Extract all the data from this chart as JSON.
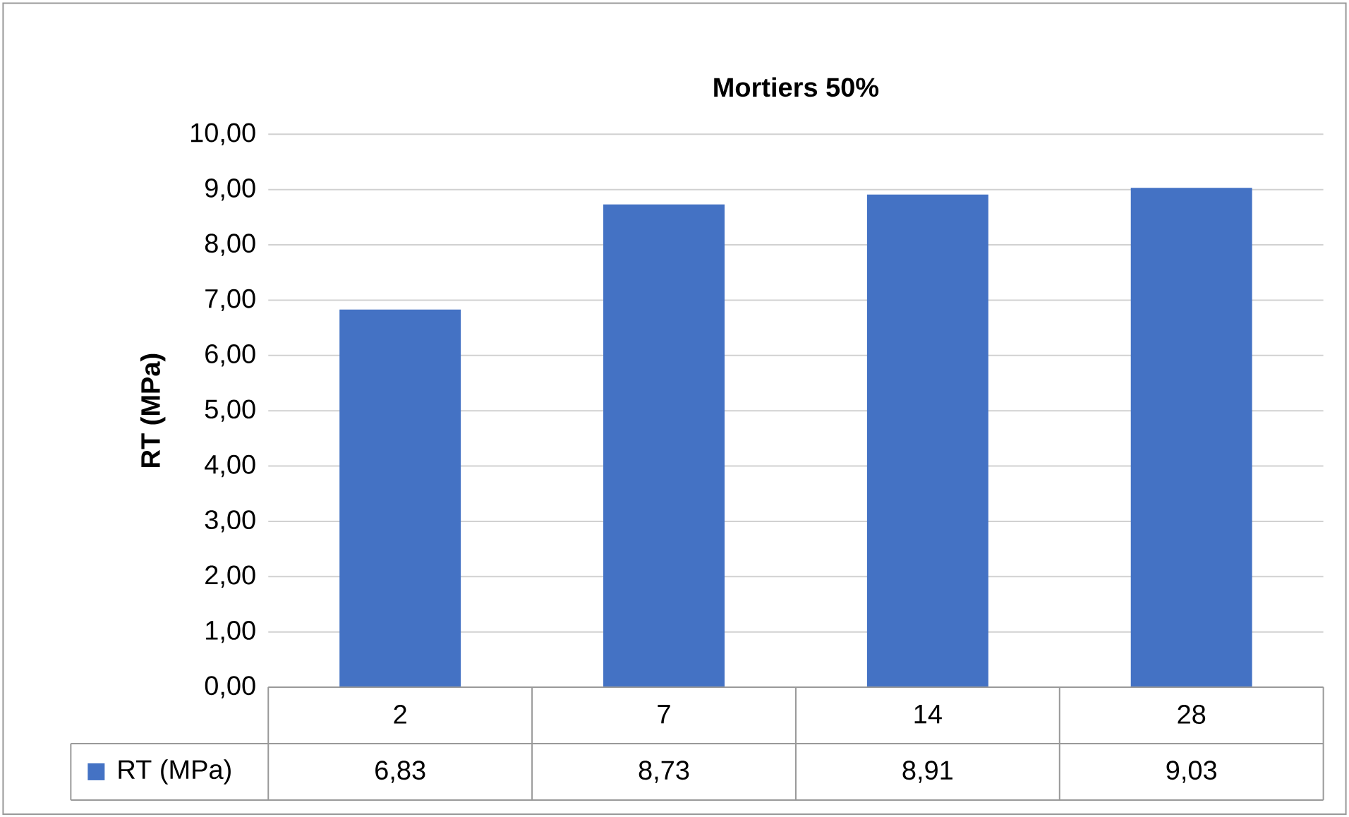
{
  "chart_data": {
    "type": "bar",
    "title": "Mortiers 50%",
    "ylabel": "RT (MPa)",
    "categories": [
      "2",
      "7",
      "14",
      "28"
    ],
    "series": [
      {
        "name": "RT (MPa)",
        "color": "#4472c4",
        "values": [
          6.83,
          8.73,
          8.91,
          9.03
        ],
        "value_labels": [
          "6,83",
          "8,73",
          "8,91",
          "9,03"
        ]
      }
    ],
    "ylim": [
      0,
      10
    ],
    "yticks": [
      {
        "value": 0,
        "label": "0,00"
      },
      {
        "value": 1,
        "label": "1,00"
      },
      {
        "value": 2,
        "label": "2,00"
      },
      {
        "value": 3,
        "label": "3,00"
      },
      {
        "value": 4,
        "label": "4,00"
      },
      {
        "value": 5,
        "label": "5,00"
      },
      {
        "value": 6,
        "label": "6,00"
      },
      {
        "value": 7,
        "label": "7,00"
      },
      {
        "value": 8,
        "label": "8,00"
      },
      {
        "value": 9,
        "label": "9,00"
      },
      {
        "value": 10,
        "label": "10,00"
      }
    ],
    "grid": "y",
    "legend": "bottom"
  }
}
